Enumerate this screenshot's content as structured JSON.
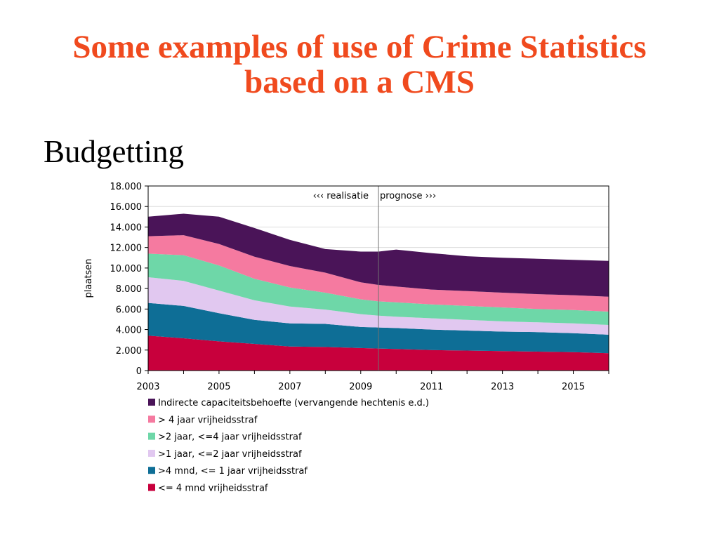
{
  "slide": {
    "title_line1": "Some examples of use of Crime Statistics",
    "title_line2": "based on a CMS",
    "heading": "Budgetting"
  },
  "chart_data": {
    "type": "area",
    "stacked": true,
    "x": [
      2003,
      2004,
      2005,
      2006,
      2007,
      2008,
      2009,
      2009.5,
      2010,
      2011,
      2012,
      2013,
      2014,
      2015,
      2016
    ],
    "x_ticks": [
      2003,
      2005,
      2007,
      2009,
      2011,
      2013,
      2015
    ],
    "xlim": [
      2003,
      2016
    ],
    "ylabel": "plaatsen",
    "ylim": [
      0,
      18000
    ],
    "y_ticks": [
      0,
      2000,
      4000,
      6000,
      8000,
      10000,
      12000,
      14000,
      16000,
      18000
    ],
    "y_tick_labels": [
      "0",
      "2.000",
      "4.000",
      "6.000",
      "8.000",
      "10.000",
      "12.000",
      "14.000",
      "16.000",
      "18.000"
    ],
    "grid": true,
    "legend_position": "bottom",
    "divider_x": 2009.5,
    "annotations": {
      "left": "‹‹‹ realisatie",
      "right": "prognose ›››"
    },
    "series": [
      {
        "name": "<= 4 mnd vrijheidsstraf",
        "color": "#c8003c",
        "values": [
          3400,
          3150,
          2850,
          2600,
          2350,
          2300,
          2200,
          2150,
          2100,
          2000,
          1950,
          1900,
          1850,
          1800,
          1700
        ]
      },
      {
        "name": ">4 mnd, <= 1 jaar vrijheidsstraf",
        "color": "#0e6e96",
        "values": [
          3200,
          3150,
          2750,
          2350,
          2250,
          2250,
          2050,
          2050,
          2050,
          2000,
          1950,
          1900,
          1900,
          1850,
          1800
        ]
      },
      {
        "name": ">1 jaar, <=2 jaar vrijheidsstraf",
        "color": "#e1c8f0",
        "values": [
          2500,
          2450,
          2200,
          1900,
          1650,
          1400,
          1250,
          1150,
          1100,
          1100,
          1050,
          1000,
          950,
          950,
          950
        ]
      },
      {
        "name": ">2 jaar, <=4 jaar vrijheidsstraf",
        "color": "#6ed7a8",
        "values": [
          2300,
          2500,
          2450,
          2100,
          1850,
          1650,
          1450,
          1400,
          1400,
          1350,
          1350,
          1350,
          1300,
          1300,
          1300
        ]
      },
      {
        "name": "> 4 jaar vrijheidsstraf",
        "color": "#f57aa0",
        "values": [
          1700,
          1950,
          2100,
          2150,
          2100,
          1950,
          1650,
          1600,
          1550,
          1450,
          1450,
          1450,
          1450,
          1450,
          1450
        ]
      },
      {
        "name": "Indirecte capaciteitsbehoefte (vervangende hechtenis e.d.)",
        "color": "#4a1458",
        "values": [
          1900,
          2100,
          2650,
          2800,
          2550,
          2300,
          3000,
          3250,
          3600,
          3550,
          3400,
          3400,
          3450,
          3450,
          3500
        ]
      }
    ]
  }
}
